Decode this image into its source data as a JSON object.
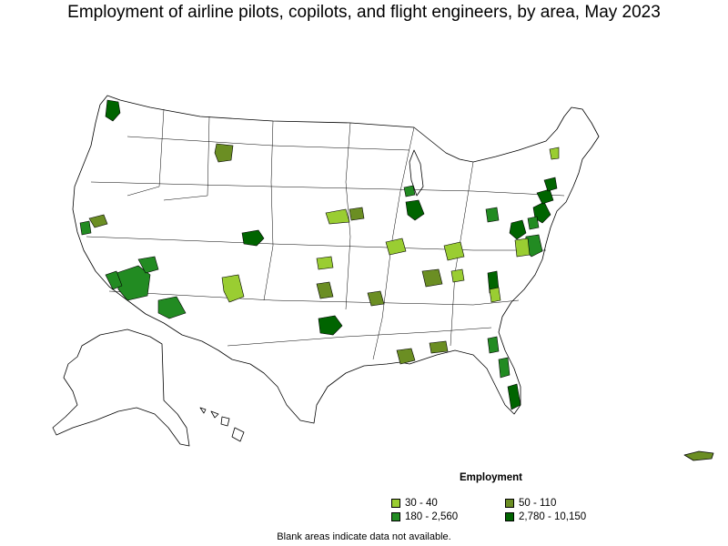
{
  "title": "Employment of airline pilots, copilots, and flight engineers, by area, May 2023",
  "legend": {
    "title": "Employment",
    "items": [
      {
        "label": "30 - 40",
        "color": "#9acd32"
      },
      {
        "label": "50 - 110",
        "color": "#6b8e23"
      },
      {
        "label": "180 - 2,560",
        "color": "#228b22"
      },
      {
        "label": "2,780 - 10,150",
        "color": "#006400"
      }
    ]
  },
  "footnote": "Blank areas indicate data not available."
}
